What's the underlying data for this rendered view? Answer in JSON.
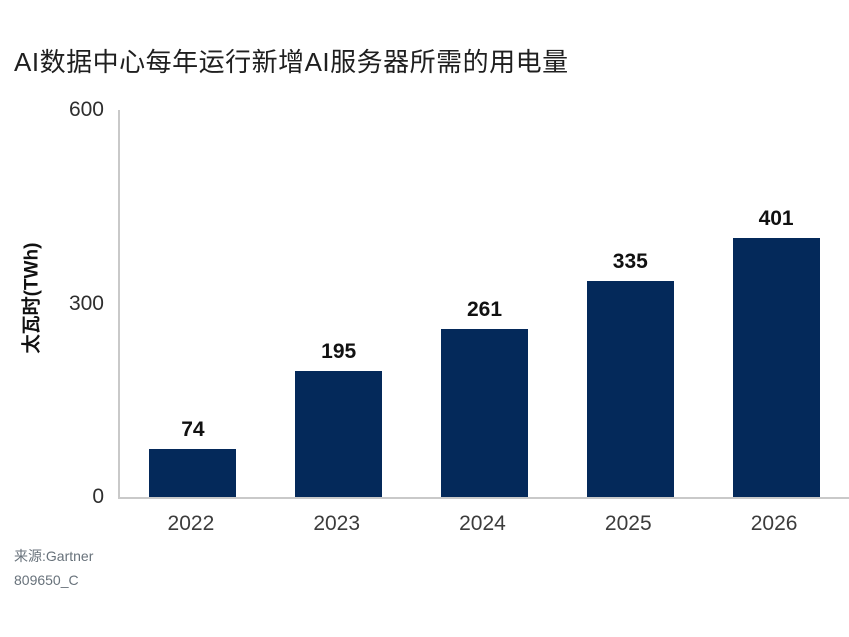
{
  "chart_data": {
    "type": "bar",
    "title": "AI数据中心每年运行新增AI服务器所需的用电量",
    "categories": [
      "2022",
      "2023",
      "2024",
      "2025",
      "2026"
    ],
    "values": [
      74,
      195,
      261,
      335,
      401
    ],
    "value_labels": [
      "74",
      "195",
      "261",
      "335",
      "401"
    ],
    "xlabel": "",
    "ylabel": "太瓦时(TWh)",
    "yticks": [
      0,
      300,
      600
    ],
    "ylim": [
      0,
      600
    ],
    "grid": "off",
    "legend_position": "none",
    "bar_color": "#04295a",
    "axis_color": "#c9c9c9",
    "source_line1": "来源:Gartner",
    "source_line2": "809650_C"
  }
}
